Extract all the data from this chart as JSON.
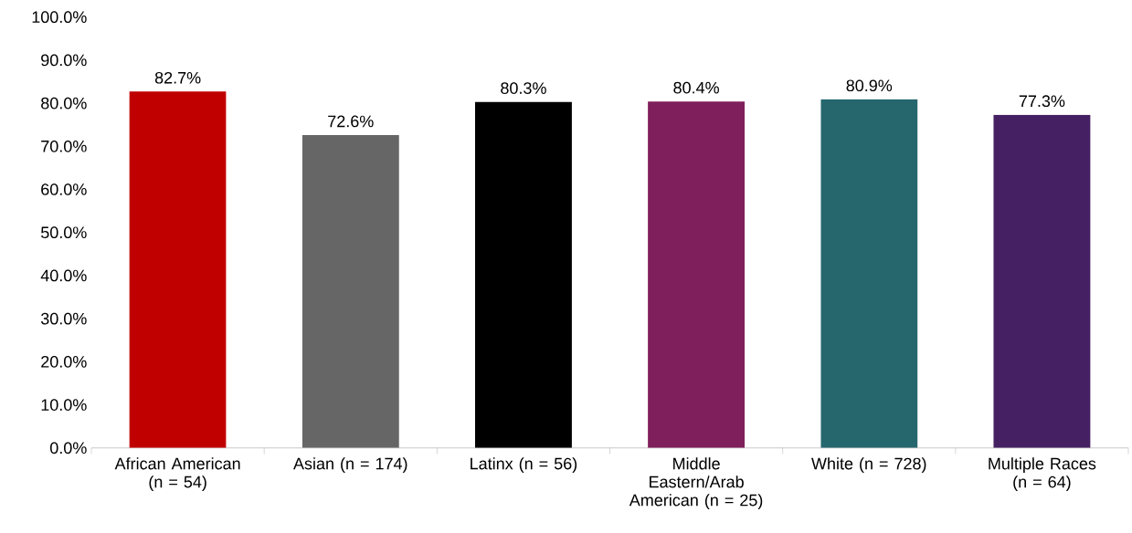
{
  "chart_data": {
    "type": "bar",
    "categories": [
      "African American (n = 54)",
      "Asian (n = 174)",
      "Latinx (n = 56)",
      "Middle Eastern/Arab American (n = 25)",
      "White (n = 728)",
      "Multiple Races (n = 64)"
    ],
    "values": [
      82.7,
      72.6,
      80.3,
      80.4,
      80.9,
      77.3
    ],
    "colors": [
      "#c00000",
      "#666666",
      "#000000",
      "#7f1f5b",
      "#26676e",
      "#452163"
    ],
    "value_labels": [
      "82.7%",
      "72.6%",
      "80.3%",
      "80.4%",
      "80.9%",
      "77.3%"
    ],
    "ylim": [
      0,
      100
    ],
    "yticks": [
      {
        "value": 0,
        "label": "0.0%"
      },
      {
        "value": 10,
        "label": "10.0%"
      },
      {
        "value": 20,
        "label": "20.0%"
      },
      {
        "value": 30,
        "label": "30.0%"
      },
      {
        "value": 40,
        "label": "40.0%"
      },
      {
        "value": 50,
        "label": "50.0%"
      },
      {
        "value": 60,
        "label": "60.0%"
      },
      {
        "value": 70,
        "label": "70.0%"
      },
      {
        "value": 80,
        "label": "80.0%"
      },
      {
        "value": 90,
        "label": "90.0%"
      },
      {
        "value": 100,
        "label": "100.0%"
      }
    ],
    "grid": false
  }
}
